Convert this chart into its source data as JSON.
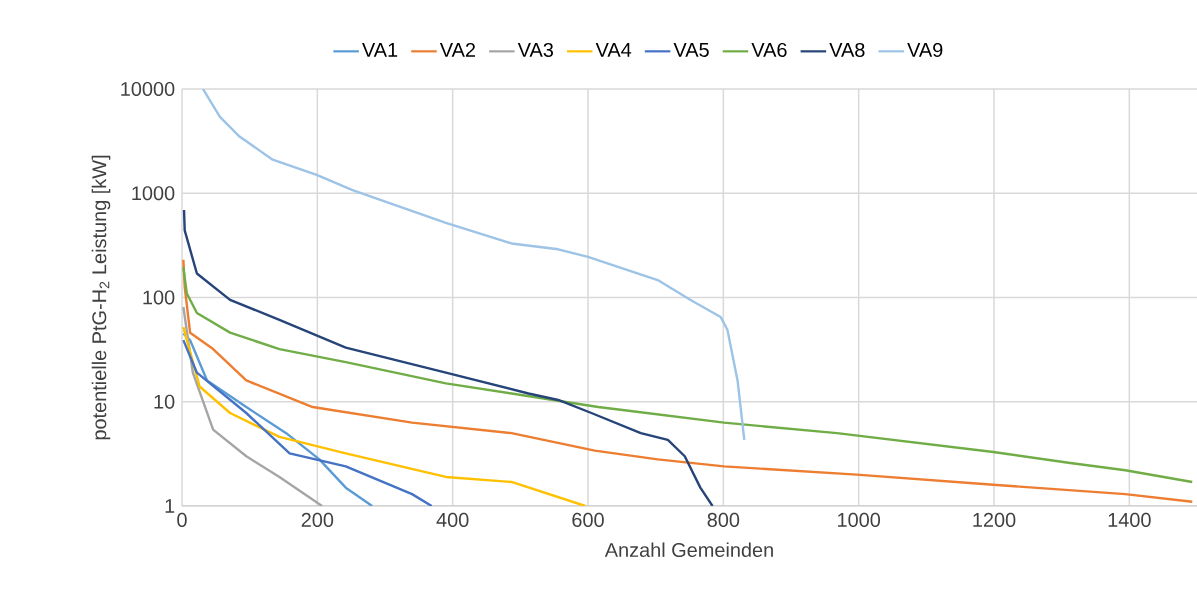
{
  "chart_data": {
    "type": "line",
    "xlabel": "Anzahl Gemeinden",
    "ylabel": "potentielle PtG-H$_{2}$ Leistung [kW]",
    "xlim": [
      0,
      1500
    ],
    "xticks": [
      0,
      200,
      400,
      600,
      800,
      1000,
      1200,
      1400
    ],
    "ylim": [
      1,
      10000
    ],
    "yticks": [
      1,
      10,
      100,
      1000,
      10000
    ],
    "log": "y",
    "grid": true,
    "legend": "top",
    "marker": "none",
    "line_style": "solid",
    "series": [
      {
        "name": "VA1",
        "color": "#5b9bd5",
        "x": [
          2,
          12,
          37,
          95,
          154,
          203,
          242,
          281
        ],
        "values": [
          45,
          39,
          16,
          8.9,
          5.0,
          2.8,
          1.5,
          1
        ]
      },
      {
        "name": "VA2",
        "color": "#ed7d31",
        "x": [
          2,
          4,
          12,
          46,
          95,
          193,
          340,
          487,
          610,
          703,
          801,
          997,
          1199,
          1394,
          1493
        ],
        "values": [
          230,
          126,
          46,
          32,
          16,
          8.9,
          6.3,
          5.0,
          3.4,
          2.8,
          2.4,
          2.0,
          1.6,
          1.3,
          1.1
        ]
      },
      {
        "name": "VA3",
        "color": "#a5a5a5",
        "x": [
          2,
          16,
          46,
          95,
          144,
          207
        ],
        "values": [
          81,
          19,
          5.4,
          3.0,
          1.9,
          1
        ]
      },
      {
        "name": "VA4",
        "color": "#ffc000",
        "x": [
          2,
          26,
          71,
          144,
          242,
          390,
          487,
          596
        ],
        "values": [
          52,
          14,
          7.8,
          4.6,
          3.2,
          1.9,
          1.7,
          1
        ]
      },
      {
        "name": "VA5",
        "color": "#4472c4",
        "x": [
          2,
          22,
          95,
          159,
          242,
          340,
          369
        ],
        "values": [
          39,
          19,
          7.8,
          3.2,
          2.4,
          1.3,
          1
        ]
      },
      {
        "name": "VA6",
        "color": "#70ad47",
        "x": [
          2,
          7,
          22,
          71,
          144,
          242,
          390,
          487,
          615,
          654,
          801,
          968,
          1199,
          1310,
          1394,
          1493
        ],
        "values": [
          195,
          110,
          71,
          46,
          32,
          24,
          15,
          12,
          8.9,
          8.3,
          6.3,
          5.0,
          3.3,
          2.6,
          2.2,
          1.7
        ]
      },
      {
        "name": "VA8",
        "color": "#264478",
        "x": [
          3,
          4,
          22,
          71,
          144,
          242,
          390,
          512,
          556,
          605,
          678,
          718,
          743,
          766,
          784
        ],
        "values": [
          690,
          440,
          170,
          95,
          61,
          33,
          19,
          12,
          10.4,
          7.8,
          5.0,
          4.3,
          3.0,
          1.5,
          1
        ]
      },
      {
        "name": "VA9",
        "color": "#9dc3e6",
        "x": [
          31,
          56,
          85,
          134,
          199,
          252,
          390,
          487,
          556,
          600,
          703,
          751,
          796,
          806,
          821,
          831
        ],
        "values": [
          10000,
          5400,
          3500,
          2100,
          1500,
          1070,
          520,
          330,
          290,
          245,
          147,
          95,
          65,
          49,
          16,
          4.3
        ]
      }
    ]
  }
}
